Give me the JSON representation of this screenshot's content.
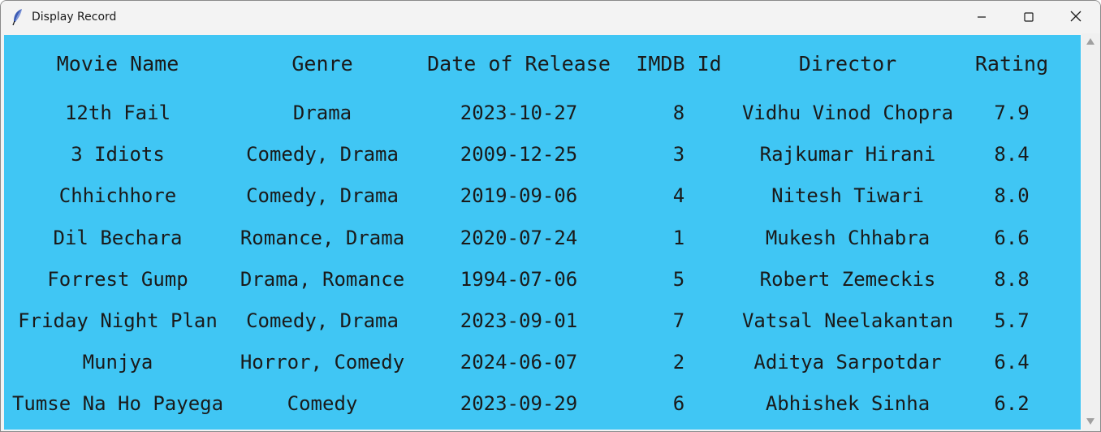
{
  "window": {
    "title": "Display Record",
    "icons": {
      "app": "feather-icon",
      "minimize": "minimize-icon",
      "maximize": "maximize-icon",
      "close": "close-icon"
    }
  },
  "colors": {
    "content_bg": "#40c6f4",
    "titlebar_bg": "#f3f3f3",
    "text": "#1a1a1a"
  },
  "table": {
    "headers": [
      "Movie Name",
      "Genre",
      "Date of Release",
      "IMDB Id",
      "Director",
      "Rating"
    ],
    "rows": [
      [
        "12th Fail",
        "Drama",
        "2023-10-27",
        "8",
        "Vidhu Vinod Chopra",
        "7.9"
      ],
      [
        "3 Idiots",
        "Comedy, Drama",
        "2009-12-25",
        "3",
        "Rajkumar Hirani",
        "8.4"
      ],
      [
        "Chhichhore",
        "Comedy, Drama",
        "2019-09-06",
        "4",
        "Nitesh Tiwari",
        "8.0"
      ],
      [
        "Dil Bechara",
        "Romance, Drama",
        "2020-07-24",
        "1",
        "Mukesh Chhabra",
        "6.6"
      ],
      [
        "Forrest Gump",
        "Drama, Romance",
        "1994-07-06",
        "5",
        "Robert Zemeckis",
        "8.8"
      ],
      [
        "Friday Night Plan",
        "Comedy, Drama",
        "2023-09-01",
        "7",
        "Vatsal Neelakantan",
        "5.7"
      ],
      [
        "Munjya",
        "Horror, Comedy",
        "2024-06-07",
        "2",
        "Aditya Sarpotdar",
        "6.4"
      ],
      [
        "Tumse Na Ho Payega",
        "Comedy",
        "2023-09-29",
        "6",
        "Abhishek Sinha",
        "6.2"
      ]
    ]
  }
}
